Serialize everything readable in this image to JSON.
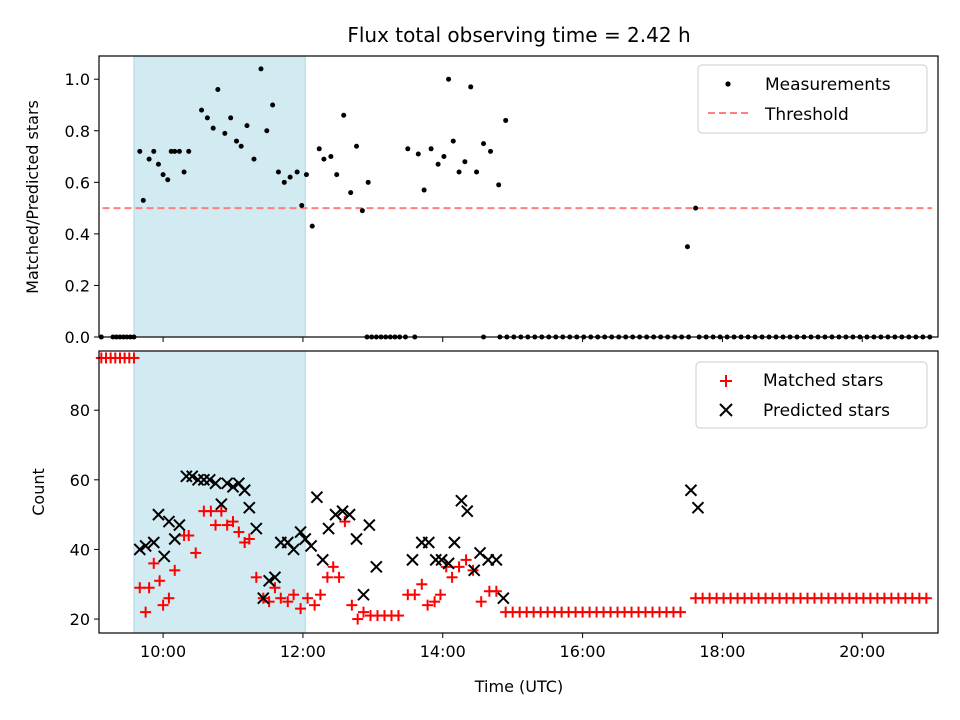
{
  "chart_data": [
    {
      "type": "scatter",
      "title": "Flux total observing time = 2.42 h",
      "xlabel": "",
      "ylabel": "Matched/Predicted stars",
      "ylim": [
        0,
        1.09
      ],
      "yticks": [
        0.0,
        0.2,
        0.4,
        0.6,
        0.8,
        1.0
      ],
      "ytick_labels": [
        "0.0",
        "0.2",
        "0.4",
        "0.6",
        "0.8",
        "1.0"
      ],
      "xlim": [
        "09:05",
        "21:05"
      ],
      "xticks": [
        "10:00",
        "12:00",
        "14:00",
        "16:00",
        "18:00",
        "20:00"
      ],
      "shaded_span": [
        "09:35",
        "12:02"
      ],
      "legend_position": "top-right",
      "legend": [
        "Measurements",
        "Threshold"
      ],
      "colors": {
        "measurements": "#000000",
        "threshold": "#ff7f7f",
        "shade": "#add8e6"
      },
      "threshold": {
        "value": 0.5,
        "x_range": [
          "09:08",
          "21:00"
        ]
      },
      "series": [
        {
          "name": "Measurements",
          "zero_points_x": [
            "09:07",
            "09:17",
            "09:20",
            "09:23",
            "09:26",
            "09:29",
            "09:32",
            "09:35",
            "12:55",
            "12:59",
            "13:03",
            "13:07",
            "13:11",
            "13:15",
            "13:19",
            "13:23",
            "13:28",
            "13:36",
            "14:35",
            "14:49",
            "14:55",
            "15:01",
            "15:07",
            "15:13",
            "15:19",
            "15:25",
            "15:31",
            "15:37",
            "15:43",
            "15:49",
            "15:55",
            "16:01",
            "16:07",
            "16:13",
            "16:19",
            "16:25",
            "16:31",
            "16:37",
            "16:43",
            "16:49",
            "16:55",
            "17:01",
            "17:07",
            "17:13",
            "17:19",
            "17:25",
            "17:31",
            "17:40",
            "17:46",
            "17:52",
            "17:58",
            "18:04",
            "18:10",
            "18:16",
            "18:22",
            "18:28",
            "18:34",
            "18:40",
            "18:46",
            "18:52",
            "18:58",
            "19:04",
            "19:10",
            "19:16",
            "19:22",
            "19:28",
            "19:34",
            "19:40",
            "19:46",
            "19:52",
            "19:58",
            "20:04",
            "20:10",
            "20:16",
            "20:22",
            "20:28",
            "20:34",
            "20:40",
            "20:46",
            "20:52",
            "20:58"
          ],
          "points": [
            [
              "09:40",
              0.72
            ],
            [
              "09:43",
              0.53
            ],
            [
              "09:48",
              0.69
            ],
            [
              "09:52",
              0.72
            ],
            [
              "09:56",
              0.67
            ],
            [
              "10:00",
              0.63
            ],
            [
              "10:04",
              0.61
            ],
            [
              "10:07",
              0.72
            ],
            [
              "10:10",
              0.72
            ],
            [
              "10:14",
              0.72
            ],
            [
              "10:18",
              0.64
            ],
            [
              "10:22",
              0.72
            ],
            [
              "10:33",
              0.88
            ],
            [
              "10:38",
              0.85
            ],
            [
              "10:43",
              0.81
            ],
            [
              "10:47",
              0.96
            ],
            [
              "10:53",
              0.79
            ],
            [
              "10:58",
              0.85
            ],
            [
              "11:03",
              0.76
            ],
            [
              "11:07",
              0.74
            ],
            [
              "11:12",
              0.82
            ],
            [
              "11:18",
              0.69
            ],
            [
              "11:24",
              1.04
            ],
            [
              "11:29",
              0.8
            ],
            [
              "11:34",
              0.9
            ],
            [
              "11:39",
              0.64
            ],
            [
              "11:44",
              0.6
            ],
            [
              "11:49",
              0.62
            ],
            [
              "11:55",
              0.64
            ],
            [
              "11:59",
              0.51
            ],
            [
              "12:03",
              0.63
            ],
            [
              "12:08",
              0.43
            ],
            [
              "12:14",
              0.73
            ],
            [
              "12:18",
              0.69
            ],
            [
              "12:24",
              0.7
            ],
            [
              "12:29",
              0.63
            ],
            [
              "12:35",
              0.86
            ],
            [
              "12:41",
              0.56
            ],
            [
              "12:46",
              0.74
            ],
            [
              "12:51",
              0.49
            ],
            [
              "12:56",
              0.6
            ],
            [
              "13:30",
              0.73
            ],
            [
              "13:39",
              0.71
            ],
            [
              "13:44",
              0.57
            ],
            [
              "13:50",
              0.73
            ],
            [
              "13:56",
              0.67
            ],
            [
              "14:01",
              0.7
            ],
            [
              "14:05",
              1.0
            ],
            [
              "14:09",
              0.76
            ],
            [
              "14:14",
              0.64
            ],
            [
              "14:19",
              0.68
            ],
            [
              "14:24",
              0.97
            ],
            [
              "14:29",
              0.64
            ],
            [
              "14:35",
              0.75
            ],
            [
              "14:41",
              0.72
            ],
            [
              "14:48",
              0.59
            ],
            [
              "14:54",
              0.84
            ],
            [
              "17:30",
              0.35
            ],
            [
              "17:37",
              0.5
            ]
          ]
        }
      ]
    },
    {
      "type": "scatter",
      "title": "",
      "xlabel": "Time (UTC)",
      "ylabel": "Count",
      "ylim": [
        16,
        97
      ],
      "yticks": [
        20,
        40,
        60,
        80
      ],
      "ytick_labels": [
        "20",
        "40",
        "60",
        "80"
      ],
      "xlim": [
        "09:05",
        "21:05"
      ],
      "xticks": [
        "10:00",
        "12:00",
        "14:00",
        "16:00",
        "18:00",
        "20:00"
      ],
      "xtick_labels": [
        "10:00",
        "12:00",
        "14:00",
        "16:00",
        "18:00",
        "20:00"
      ],
      "shaded_span": [
        "09:35",
        "12:02"
      ],
      "legend_position": "top-right",
      "legend": [
        "Matched stars",
        "Predicted stars"
      ],
      "colors": {
        "matched": "#ff0000",
        "predicted": "#000000",
        "shade": "#add8e6"
      },
      "series": [
        {
          "name": "Matched stars",
          "marker": "+",
          "runs": [
            {
              "start": "09:07",
              "end": "09:36",
              "step_min": 4,
              "value": 95
            },
            {
              "start": "14:54",
              "end": "17:29",
              "step_min": 6,
              "value": 22
            },
            {
              "start": "17:37",
              "end": "21:00",
              "step_min": 6,
              "value": 26
            }
          ],
          "points": [
            [
              "09:40",
              29
            ],
            [
              "09:45",
              22
            ],
            [
              "09:48",
              29
            ],
            [
              "09:52",
              36
            ],
            [
              "09:57",
              31
            ],
            [
              "10:00",
              24
            ],
            [
              "10:05",
              26
            ],
            [
              "10:10",
              34
            ],
            [
              "10:18",
              44
            ],
            [
              "10:22",
              44
            ],
            [
              "10:28",
              39
            ],
            [
              "10:35",
              51
            ],
            [
              "10:41",
              51
            ],
            [
              "10:45",
              47
            ],
            [
              "10:50",
              51
            ],
            [
              "10:55",
              47
            ],
            [
              "11:00",
              48
            ],
            [
              "11:05",
              45
            ],
            [
              "11:10",
              42
            ],
            [
              "11:14",
              43
            ],
            [
              "11:20",
              32
            ],
            [
              "11:26",
              26
            ],
            [
              "11:31",
              25
            ],
            [
              "11:36",
              29
            ],
            [
              "11:41",
              26
            ],
            [
              "11:47",
              25
            ],
            [
              "11:52",
              27
            ],
            [
              "11:58",
              23
            ],
            [
              "12:04",
              26
            ],
            [
              "12:10",
              24
            ],
            [
              "12:15",
              27
            ],
            [
              "12:21",
              32
            ],
            [
              "12:26",
              35
            ],
            [
              "12:31",
              32
            ],
            [
              "12:36",
              48
            ],
            [
              "12:42",
              24
            ],
            [
              "12:47",
              20
            ],
            [
              "12:52",
              22
            ],
            [
              "12:58",
              21
            ],
            [
              "13:04",
              21
            ],
            [
              "13:10",
              21
            ],
            [
              "13:16",
              21
            ],
            [
              "13:22",
              21
            ],
            [
              "13:30",
              27
            ],
            [
              "13:36",
              27
            ],
            [
              "13:42",
              30
            ],
            [
              "13:47",
              24
            ],
            [
              "13:53",
              25
            ],
            [
              "13:58",
              27
            ],
            [
              "14:03",
              35
            ],
            [
              "14:08",
              32
            ],
            [
              "14:14",
              35
            ],
            [
              "14:20",
              37
            ],
            [
              "14:26",
              34
            ],
            [
              "14:33",
              25
            ],
            [
              "14:40",
              28
            ],
            [
              "14:46",
              28
            ]
          ]
        },
        {
          "name": "Predicted stars",
          "marker": "x",
          "points": [
            [
              "09:40",
              40
            ],
            [
              "09:45",
              41
            ],
            [
              "09:52",
              42
            ],
            [
              "09:56",
              50
            ],
            [
              "10:01",
              38
            ],
            [
              "10:05",
              48
            ],
            [
              "10:10",
              43
            ],
            [
              "10:14",
              47
            ],
            [
              "10:20",
              61
            ],
            [
              "10:25",
              61
            ],
            [
              "10:30",
              60
            ],
            [
              "10:35",
              60
            ],
            [
              "10:40",
              60
            ],
            [
              "10:45",
              59
            ],
            [
              "10:50",
              53
            ],
            [
              "10:55",
              59
            ],
            [
              "11:00",
              58
            ],
            [
              "11:05",
              59
            ],
            [
              "11:10",
              57
            ],
            [
              "11:14",
              52
            ],
            [
              "11:20",
              46
            ],
            [
              "11:26",
              26
            ],
            [
              "11:31",
              31
            ],
            [
              "11:36",
              32
            ],
            [
              "11:41",
              42
            ],
            [
              "11:47",
              42
            ],
            [
              "11:52",
              40
            ],
            [
              "11:58",
              45
            ],
            [
              "12:02",
              43
            ],
            [
              "12:07",
              41
            ],
            [
              "12:12",
              55
            ],
            [
              "12:17",
              37
            ],
            [
              "12:22",
              46
            ],
            [
              "12:28",
              50
            ],
            [
              "12:34",
              51
            ],
            [
              "12:40",
              50
            ],
            [
              "12:46",
              43
            ],
            [
              "12:52",
              27
            ],
            [
              "12:57",
              47
            ],
            [
              "13:03",
              35
            ],
            [
              "13:34",
              37
            ],
            [
              "13:42",
              42
            ],
            [
              "13:48",
              42
            ],
            [
              "13:54",
              37
            ],
            [
              "13:59",
              37
            ],
            [
              "14:05",
              36
            ],
            [
              "14:10",
              42
            ],
            [
              "14:16",
              54
            ],
            [
              "14:21",
              51
            ],
            [
              "14:27",
              34
            ],
            [
              "14:32",
              39
            ],
            [
              "14:39",
              37
            ],
            [
              "14:46",
              37
            ],
            [
              "14:52",
              26
            ],
            [
              "17:33",
              57
            ],
            [
              "17:39",
              52
            ]
          ]
        }
      ]
    }
  ]
}
